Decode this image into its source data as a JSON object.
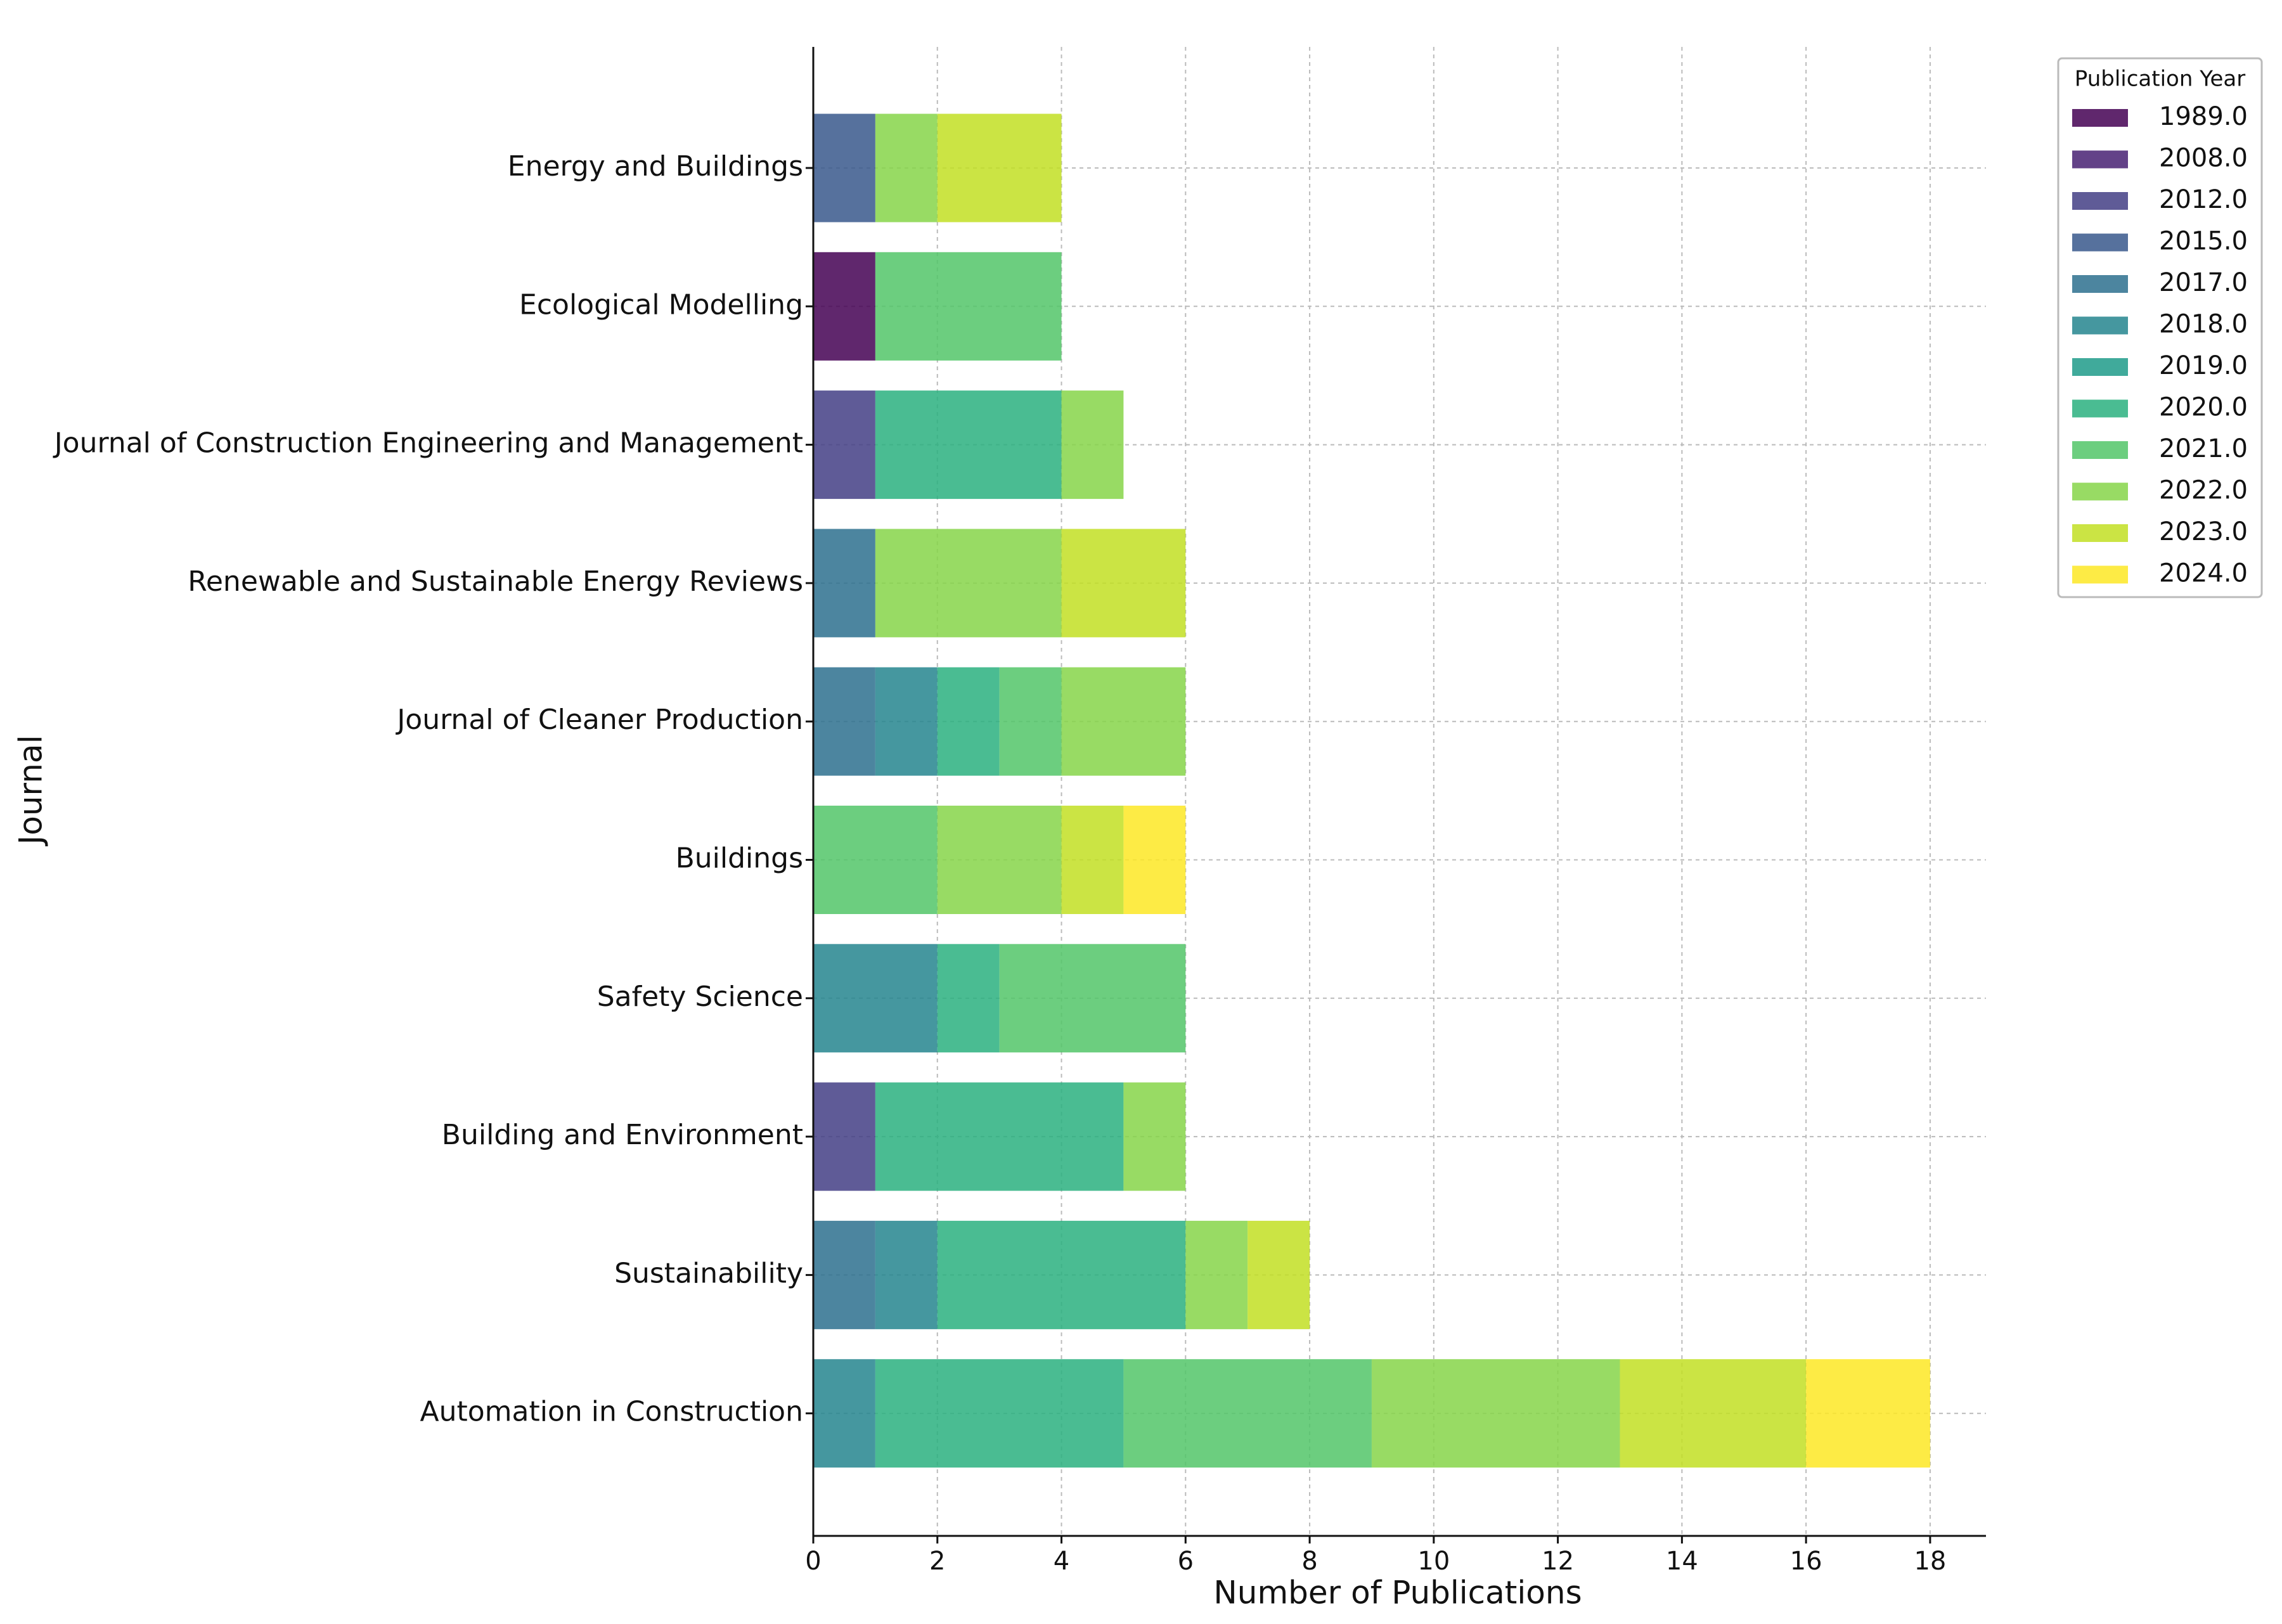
{
  "chart_data": {
    "type": "stacked-barh",
    "xlabel": "Number of Publications",
    "ylabel": "Journal",
    "legend_title": "Publication Year",
    "legend": "upper right outside",
    "categories": [
      "Energy and Buildings",
      "Ecological Modelling",
      "Journal of Construction Engineering and Management",
      "Renewable and Sustainable Energy Reviews",
      "Journal of Cleaner Production",
      "Buildings",
      "Safety Science",
      "Building and Environment",
      "Sustainability",
      "Automation in Construction"
    ],
    "series": [
      {
        "name": "1989.0",
        "color": "#440154",
        "values": [
          0,
          1,
          0,
          0,
          0,
          0,
          0,
          0,
          0,
          0
        ]
      },
      {
        "name": "2008.0",
        "color": "#482173",
        "values": [
          0,
          0,
          0,
          0,
          0,
          0,
          0,
          0,
          0,
          0
        ]
      },
      {
        "name": "2012.0",
        "color": "#433e85",
        "values": [
          0,
          0,
          1,
          0,
          0,
          0,
          0,
          1,
          0,
          0
        ]
      },
      {
        "name": "2015.0",
        "color": "#38588c",
        "values": [
          1,
          0,
          0,
          0,
          0,
          0,
          0,
          0,
          0,
          0
        ]
      },
      {
        "name": "2017.0",
        "color": "#2d708e",
        "values": [
          0,
          0,
          0,
          1,
          1,
          0,
          0,
          0,
          1,
          0
        ]
      },
      {
        "name": "2018.0",
        "color": "#25858e",
        "values": [
          0,
          0,
          0,
          0,
          1,
          0,
          2,
          0,
          1,
          1
        ]
      },
      {
        "name": "2019.0",
        "color": "#1e9b8a",
        "values": [
          0,
          0,
          0,
          0,
          0,
          0,
          0,
          0,
          0,
          0
        ]
      },
      {
        "name": "2020.0",
        "color": "#2ab07f",
        "values": [
          0,
          0,
          3,
          0,
          1,
          0,
          1,
          4,
          4,
          4
        ]
      },
      {
        "name": "2021.0",
        "color": "#52c569",
        "values": [
          0,
          3,
          0,
          0,
          1,
          2,
          3,
          0,
          0,
          4
        ]
      },
      {
        "name": "2022.0",
        "color": "#86d549",
        "values": [
          1,
          0,
          1,
          3,
          2,
          2,
          0,
          1,
          1,
          4
        ]
      },
      {
        "name": "2023.0",
        "color": "#c2df23",
        "values": [
          2,
          0,
          0,
          2,
          0,
          1,
          0,
          0,
          1,
          3
        ]
      },
      {
        "name": "2024.0",
        "color": "#fde725",
        "values": [
          0,
          0,
          0,
          0,
          0,
          1,
          0,
          0,
          0,
          2
        ]
      }
    ],
    "alpha": 0.85,
    "xlim": [
      0,
      18.9
    ],
    "xticks": [
      0,
      2,
      4,
      6,
      8,
      10,
      12,
      14,
      16,
      18
    ],
    "grid": true
  }
}
